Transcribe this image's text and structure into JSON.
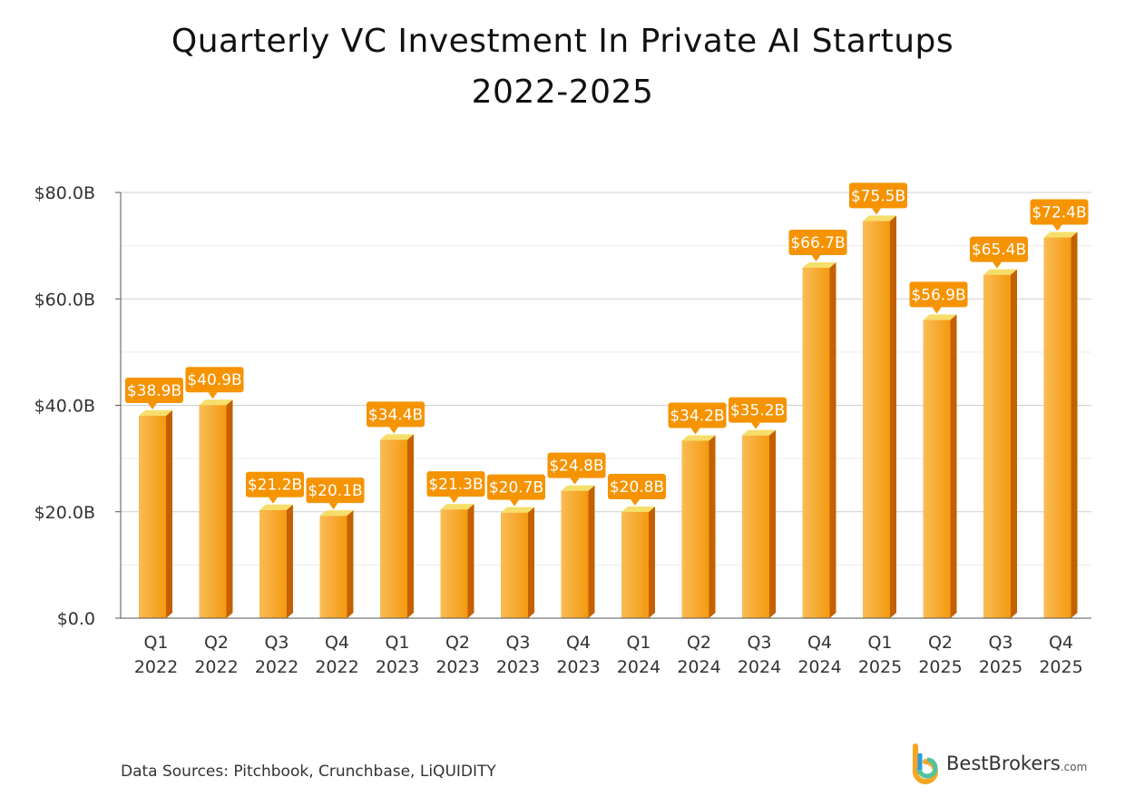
{
  "title_line1": "Quarterly VC Investment In Private AI Startups",
  "title_line2": "2022-2025",
  "source": "Data Sources: Pitchbook, Crunchbase, LiQUIDITY",
  "logo": {
    "name": "BestBrokers",
    "domain": ".com"
  },
  "colors": {
    "bar_front": "#f7a11a",
    "bar_side": "#c46000",
    "bar_top": "#f6de6a",
    "label_bg": "#f59300",
    "label_text": "#ffffff"
  },
  "chart_data": {
    "type": "bar",
    "title": "Quarterly VC Investment In Private AI Startups 2022-2025",
    "categories": [
      [
        "Q1",
        "2022"
      ],
      [
        "Q2",
        "2022"
      ],
      [
        "Q3",
        "2022"
      ],
      [
        "Q4",
        "2022"
      ],
      [
        "Q1",
        "2023"
      ],
      [
        "Q2",
        "2023"
      ],
      [
        "Q3",
        "2023"
      ],
      [
        "Q4",
        "2023"
      ],
      [
        "Q1",
        "2024"
      ],
      [
        "Q2",
        "2024"
      ],
      [
        "Q3",
        "2024"
      ],
      [
        "Q4",
        "2024"
      ],
      [
        "Q1",
        "2025"
      ],
      [
        "Q2",
        "2025"
      ],
      [
        "Q3",
        "2025"
      ],
      [
        "Q4",
        "2025"
      ]
    ],
    "values": [
      38.9,
      40.9,
      21.2,
      20.1,
      34.4,
      21.3,
      20.7,
      24.8,
      20.8,
      34.2,
      35.2,
      66.7,
      75.5,
      56.9,
      65.4,
      72.4
    ],
    "data_labels": [
      "$38.9B",
      "$40.9B",
      "$21.2B",
      "$20.1B",
      "$34.4B",
      "$21.3B",
      "$20.7B",
      "$24.8B",
      "$20.8B",
      "$34.2B",
      "$35.2B",
      "$66.7B",
      "$75.5B",
      "$56.9B",
      "$65.4B",
      "$72.4B"
    ],
    "yticks": [
      0,
      20,
      40,
      60,
      80
    ],
    "ytick_labels": [
      "$0.0",
      "$20.0B",
      "$40.0B",
      "$60.0B",
      "$80.0B"
    ],
    "ylim": [
      0,
      80
    ],
    "grid": true,
    "style": "3d-bar"
  }
}
